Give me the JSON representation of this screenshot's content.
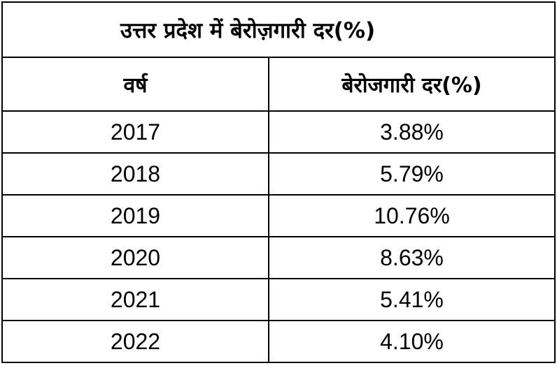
{
  "title": "उत्तर प्रदेश में बेरोज़गारी दर(%)",
  "headers": [
    "वर्ष",
    "बेरोजगारी दर(%)"
  ],
  "rows": [
    {
      "year": "2017",
      "rate": "3.88%"
    },
    {
      "year": "2018",
      "rate": "5.79%"
    },
    {
      "year": "2019",
      "rate": "10.76%"
    },
    {
      "year": "2020",
      "rate": "8.63%"
    },
    {
      "year": "2021",
      "rate": "5.41%"
    },
    {
      "year": "2022",
      "rate": "4.10%"
    }
  ]
}
